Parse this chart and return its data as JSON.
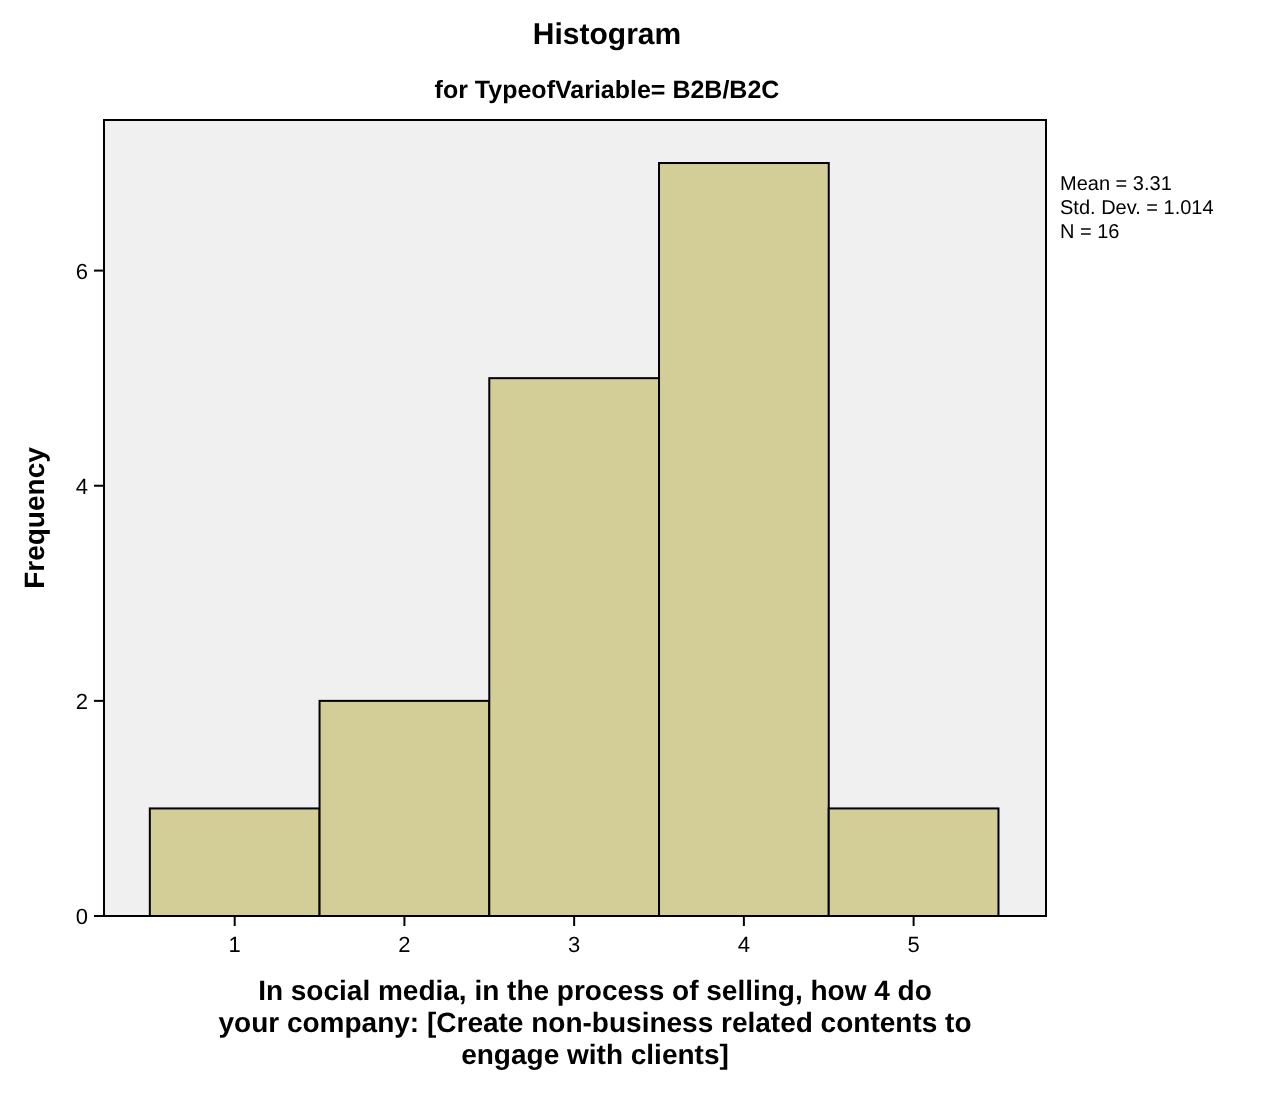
{
  "chart_data": {
    "type": "histogram",
    "title": "Histogram",
    "subtitle": "for TypeofVariable= B2B/B2C",
    "xlabel": "In social media, in the process of selling, how 4 do your company: [Create non-business related contents to engage with clients]",
    "ylabel": "Frequency",
    "bins": [
      0.5,
      1.5,
      2.5,
      3.5,
      4.5,
      5.5
    ],
    "values": [
      1,
      2,
      5,
      7,
      1
    ],
    "color": "#d3ce97",
    "xlim": [
      0.23,
      5.78
    ],
    "xticks": [
      1,
      2,
      3,
      4,
      5
    ],
    "ylim": [
      0,
      7.4
    ],
    "yticks": [
      0,
      2,
      4,
      6
    ],
    "grid": false,
    "annotations": [
      "Mean = 3.31\nStd. Dev. = 1.014\nN = 16"
    ]
  }
}
